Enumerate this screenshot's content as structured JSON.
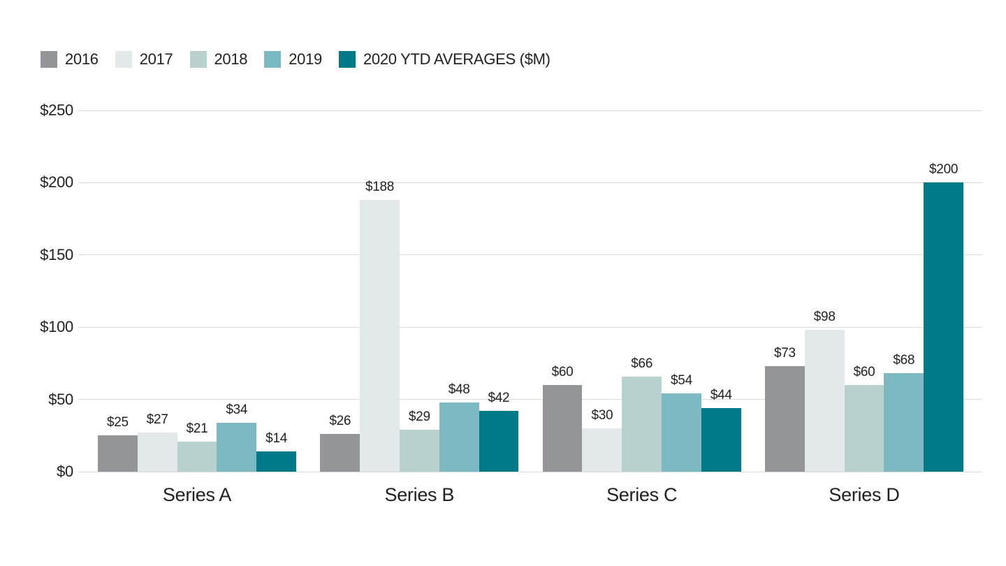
{
  "chart_data": {
    "type": "bar",
    "title": "",
    "xlabel": "",
    "ylabel": "",
    "categories": [
      "Series A",
      "Series B",
      "Series C",
      "Series D"
    ],
    "series": [
      {
        "name": "2016",
        "color": "#939598",
        "values": [
          25,
          26,
          60,
          73
        ]
      },
      {
        "name": "2017",
        "color": "#E3E9EB",
        "values": [
          27,
          188,
          30,
          98
        ]
      },
      {
        "name": "2018",
        "color": "#B7D1CF",
        "values": [
          21,
          29,
          66,
          60
        ]
      },
      {
        "name": "2019",
        "color": "#7DB9C3",
        "values": [
          34,
          48,
          54,
          68
        ]
      },
      {
        "name": "2020 YTD AVERAGES ($M)",
        "color": "#007A87",
        "values": [
          14,
          42,
          44,
          200
        ]
      }
    ],
    "ylim": [
      0,
      250
    ],
    "yticks": [
      0,
      50,
      100,
      150,
      200,
      250
    ],
    "ytick_labels": [
      "$0",
      "$50",
      "$100",
      "$150",
      "$200",
      "$250"
    ],
    "value_prefix": "$",
    "grid": true,
    "gridline_color": "#D9DADB",
    "text_color": "#231F20",
    "legend_position": "top-left"
  }
}
